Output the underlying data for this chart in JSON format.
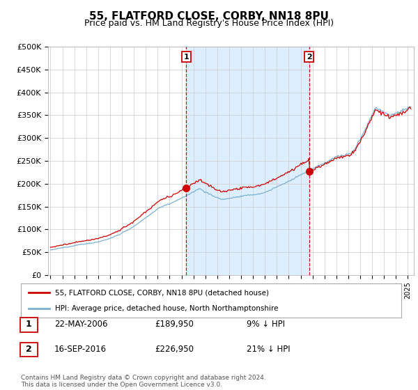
{
  "title": "55, FLATFORD CLOSE, CORBY, NN18 8PU",
  "subtitle": "Price paid vs. HM Land Registry's House Price Index (HPI)",
  "ylabel_ticks": [
    "£0",
    "£50K",
    "£100K",
    "£150K",
    "£200K",
    "£250K",
    "£300K",
    "£350K",
    "£400K",
    "£450K",
    "£500K"
  ],
  "ytick_values": [
    0,
    50000,
    100000,
    150000,
    200000,
    250000,
    300000,
    350000,
    400000,
    450000,
    500000
  ],
  "ylim": [
    0,
    500000
  ],
  "xlim_start": 1994.8,
  "xlim_end": 2025.5,
  "red_line_color": "#cc0000",
  "blue_line_color": "#7ab0d4",
  "shade_color": "#ddeeff",
  "sale1_x": 2006.388,
  "sale1_y": 189950,
  "sale2_x": 2016.708,
  "sale2_y": 226950,
  "vline_color": "#cc0000",
  "legend_label_red": "55, FLATFORD CLOSE, CORBY, NN18 8PU (detached house)",
  "legend_label_blue": "HPI: Average price, detached house, North Northamptonshire",
  "table_row1": [
    "1",
    "22-MAY-2006",
    "£189,950",
    "9% ↓ HPI"
  ],
  "table_row2": [
    "2",
    "16-SEP-2016",
    "£226,950",
    "21% ↓ HPI"
  ],
  "footnote": "Contains HM Land Registry data © Crown copyright and database right 2024.\nThis data is licensed under the Open Government Licence v3.0.",
  "background_color": "#ffffff",
  "grid_color": "#cccccc"
}
